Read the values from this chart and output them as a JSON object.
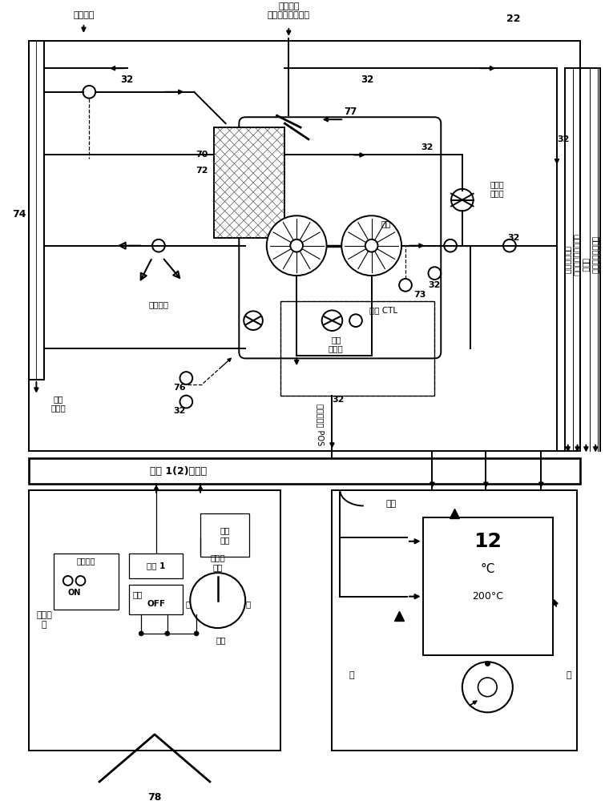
{
  "bg_color": "#ffffff",
  "labels": {
    "release_air": "放出空气",
    "bleed_air_top": "冲压空气\n热交换器进口襟翁",
    "n22": "22",
    "n32": "32",
    "n74": "74",
    "n70": "70",
    "n72": "72",
    "n77": "77",
    "n73": "73",
    "n76": "76",
    "n78": "78",
    "compressor_check": "压缩机\n止回阀",
    "turbine": "渦轮",
    "temp_ctrl_valve": "温度\n控制阀",
    "cooling_fan": "冷却风扇",
    "pneumatic_ctl": "气动 CTL",
    "temp_ctrl_pos": "温度控制阀 POS",
    "to_hot_valve": "至热\n空气阀",
    "controller": "组件 1(2)控制器",
    "zone_ctrl": "区域\n控制",
    "component1": "组件 1",
    "airflow_normal": "空气流\n正常",
    "low": "低",
    "high": "高",
    "manual": "手动",
    "fault": "故障",
    "off": "OFF",
    "on": "ON",
    "ram_air": "冲压空气",
    "air_duct": "空气导管",
    "air_duct2": "空气导\n管",
    "bleed_gas": "放气",
    "temp_12": "12",
    "celsius": "°C",
    "temp_200c": "200°C",
    "comp_out_temp": "组件出口温度",
    "comp_comp_out": "组件压缩机出口温度",
    "comp_flow": "组件流",
    "comp_flow_ctrl": "组件流控制阀位置"
  }
}
